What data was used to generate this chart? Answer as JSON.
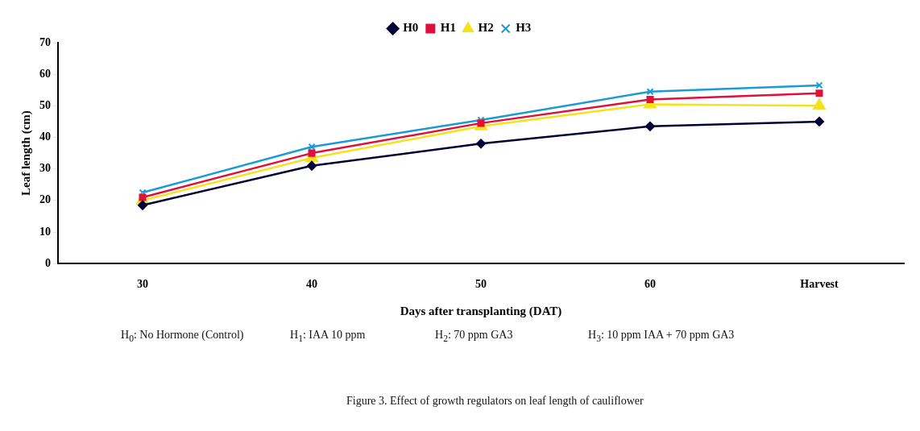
{
  "chart_data": {
    "type": "line",
    "xlabel": "Days after transplanting (DAT)",
    "ylabel": "Leaf length (cm)",
    "categories": [
      "30",
      "40",
      "50",
      "60",
      "Harvest"
    ],
    "series": [
      {
        "name": "H0",
        "color": "#000033",
        "marker": "diamond",
        "values": [
          18.5,
          31,
          38,
          43.5,
          45
        ]
      },
      {
        "name": "H1",
        "color": "#e0103a",
        "marker": "square",
        "values": [
          21,
          35,
          44.5,
          52,
          54
        ]
      },
      {
        "name": "H2",
        "color": "#f5e21a",
        "marker": "triangle",
        "values": [
          20,
          33.5,
          43.5,
          50.5,
          50
        ]
      },
      {
        "name": "H3",
        "color": "#1a9ad6",
        "marker": "cross",
        "values": [
          22.5,
          37,
          45.5,
          54.5,
          56.5
        ]
      }
    ],
    "ylim": [
      0,
      70
    ],
    "yticks": [
      0,
      10,
      20,
      30,
      40,
      50,
      60,
      70
    ],
    "grid": false,
    "legend": "top",
    "line_style": "solid",
    "annotations": [
      "H$_{0}$: No Hormone (Control)",
      "H$_{1}$: IAA 10 ppm",
      "H$_{2}$: 70 ppm GA3",
      "H$_{3}$: 10 ppm IAA + 70 ppm GA3",
      "Figure 3. Effect of growth regulators on leaf length of cauliflower"
    ]
  }
}
